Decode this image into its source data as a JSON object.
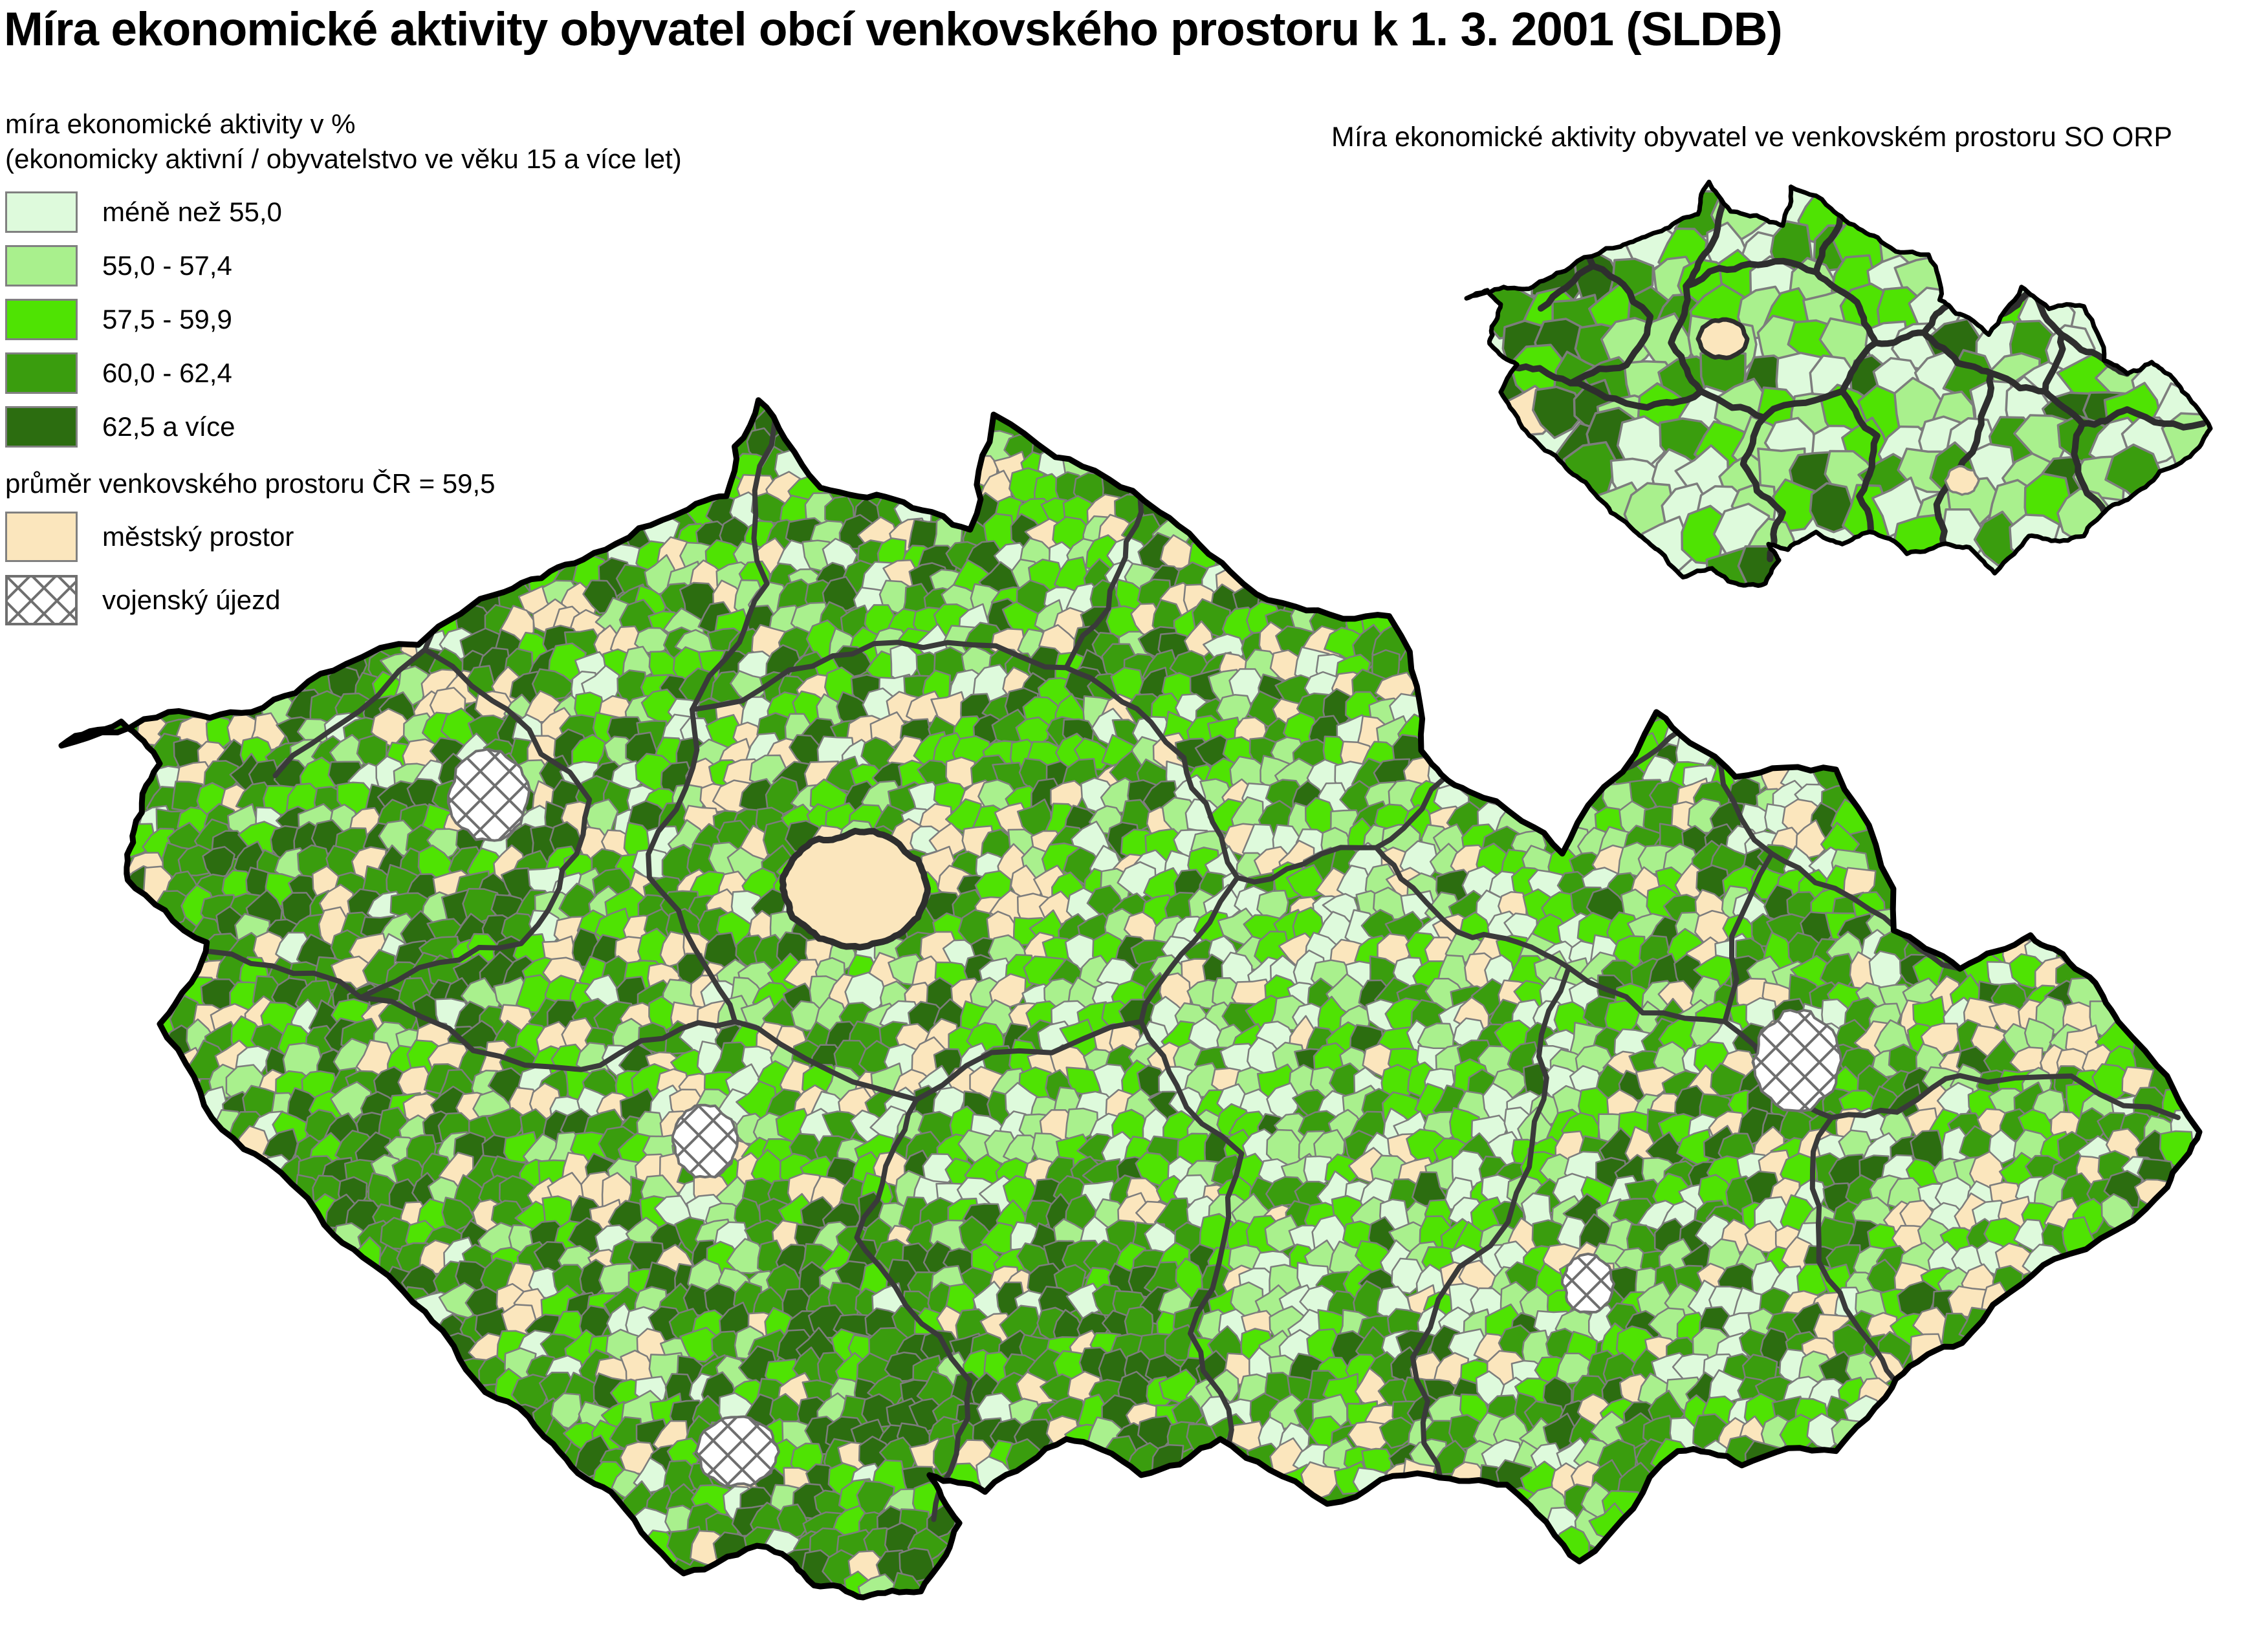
{
  "title": "Míra ekonomické aktivity obyvatel obcí venkovského prostoru k 1. 3. 2001 (SLDB)",
  "legend": {
    "heading_line1": "míra ekonomické aktivity v %",
    "heading_line2": "(ekonomicky aktivní / obyvatelstvo ve věku 15 a více let)",
    "classes": [
      {
        "label": "méně než 55,0",
        "color": "#DEFADC"
      },
      {
        "label": "55,0 - 57,4",
        "color": "#A9F08D"
      },
      {
        "label": "57,5 - 59,9",
        "color": "#4FE303"
      },
      {
        "label": "60,0 - 62,4",
        "color": "#3A9D0E"
      },
      {
        "label": "62,5 a více",
        "color": "#2C6D10"
      }
    ],
    "note": "průměr venkovského prostoru ČR = 59,5",
    "urban": {
      "label": "městský prostor",
      "color": "#FBE6BD"
    },
    "military": {
      "label": "vojenský újezd",
      "hatch_color": "#6F6F6F",
      "fill": "#FFFFFF"
    }
  },
  "inset": {
    "caption": "Míra ekonomické aktivity obyvatel ve venkovském prostoru SO ORP"
  },
  "map_colors": {
    "country_border": "#000000",
    "municipality_border": "#7D7D7D",
    "region_border": "#3A3A3A",
    "background": "#FFFFFF"
  }
}
